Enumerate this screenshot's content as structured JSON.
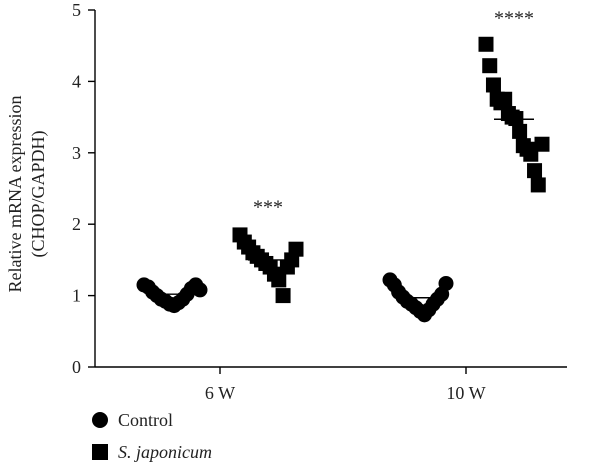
{
  "chart_data": {
    "type": "scatter",
    "ylabel_line1": "Relative mRNA expression",
    "ylabel_line2": "(CHOP/GAPDH)",
    "ylim": [
      0,
      5
    ],
    "yticks": [
      0,
      1,
      2,
      3,
      4,
      5
    ],
    "categories": [
      "6 W",
      "10 W"
    ],
    "legend": {
      "placement": "bottom-left",
      "items": [
        {
          "label": "Control",
          "marker": "circle",
          "italic": false
        },
        {
          "label": "S. japonicum",
          "marker": "square",
          "italic": true
        }
      ]
    },
    "color": "#000000",
    "series": [
      {
        "name": "Control",
        "marker": "circle",
        "groups": [
          {
            "category": "6 W",
            "mean": 1.02,
            "values": [
              1.15,
              1.12,
              1.05,
              1.0,
              0.95,
              0.92,
              0.88,
              0.86,
              0.9,
              0.95,
              1.02,
              1.1,
              1.15,
              1.08
            ]
          },
          {
            "category": "10 W",
            "mean": 0.97,
            "values": [
              1.22,
              1.15,
              1.05,
              0.98,
              0.92,
              0.88,
              0.83,
              0.78,
              0.73,
              0.8,
              0.88,
              0.95,
              1.02,
              1.17
            ]
          }
        ]
      },
      {
        "name": "S. japonicum",
        "marker": "square",
        "groups": [
          {
            "category": "6 W",
            "mean": 1.5,
            "values": [
              1.85,
              1.75,
              1.68,
              1.6,
              1.55,
              1.5,
              1.45,
              1.4,
              1.3,
              1.22,
              1.0,
              1.4,
              1.5,
              1.65
            ]
          },
          {
            "category": "10 W",
            "mean": 3.47,
            "values": [
              4.52,
              4.22,
              3.95,
              3.75,
              3.7,
              3.75,
              3.55,
              3.5,
              3.48,
              3.3,
              3.1,
              3.05,
              2.98,
              2.75,
              2.55,
              3.12
            ]
          }
        ]
      }
    ],
    "annotations": [
      {
        "text": "***",
        "category": "6 W",
        "series": "S. japonicum",
        "y": 2.15
      },
      {
        "text": "****",
        "category": "10 W",
        "series": "S. japonicum",
        "y": 4.8
      }
    ]
  }
}
